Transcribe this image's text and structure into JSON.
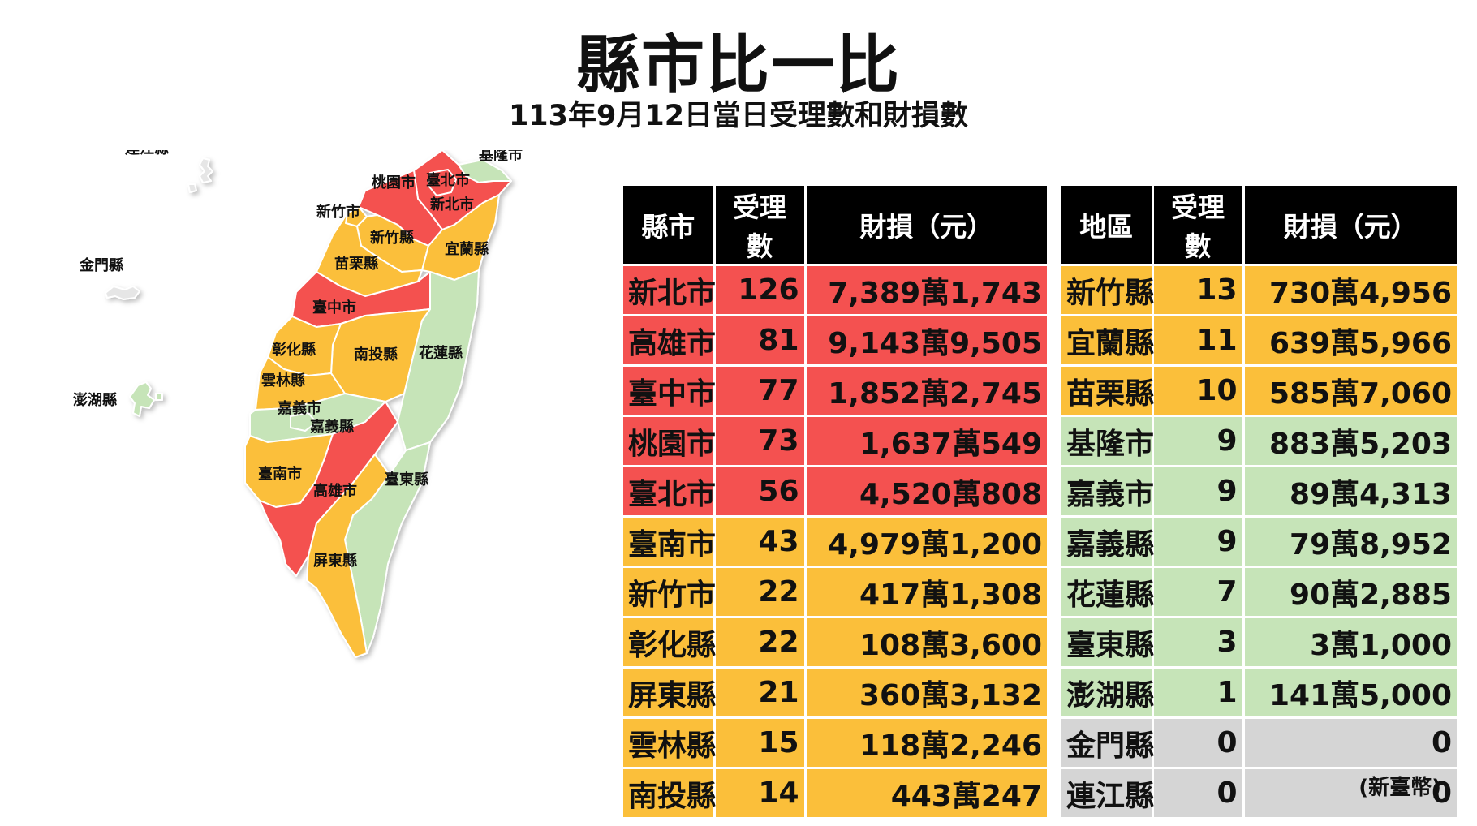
{
  "header": {
    "title": "縣市比一比",
    "subtitle": "113年9月12日當日受理數和財損數"
  },
  "colors": {
    "red": "#f45150",
    "orange": "#fbbf3a",
    "green": "#c6e4b8",
    "gray": "#d5d5d5",
    "header_bg": "#000000"
  },
  "map": {
    "labels": {
      "keelung": "基隆市",
      "taipei": "臺北市",
      "new_taipei": "新北市",
      "taoyuan": "桃園市",
      "hsinchu_city": "新竹市",
      "hsinchu_county": "新竹縣",
      "yilan": "宜蘭縣",
      "miaoli": "苗栗縣",
      "taichung": "臺中市",
      "changhua": "彰化縣",
      "nantou": "南投縣",
      "hualien": "花蓮縣",
      "yunlin": "雲林縣",
      "chiayi_city": "嘉義市",
      "chiayi_county": "嘉義縣",
      "tainan": "臺南市",
      "kaohsiung": "高雄市",
      "taitung": "臺東縣",
      "pingtung": "屏東縣",
      "lienchiang": "連江縣",
      "kinmen": "金門縣",
      "penghu": "澎湖縣"
    }
  },
  "table_left": {
    "headers": [
      "縣市",
      "受理數",
      "財損（元）"
    ],
    "rows": [
      {
        "name": "新北市",
        "count": "126",
        "loss": "7,389萬1,743",
        "level": "red"
      },
      {
        "name": "高雄市",
        "count": "81",
        "loss": "9,143萬9,505",
        "level": "red"
      },
      {
        "name": "臺中市",
        "count": "77",
        "loss": "1,852萬2,745",
        "level": "red"
      },
      {
        "name": "桃園市",
        "count": "73",
        "loss": "1,637萬549",
        "level": "red"
      },
      {
        "name": "臺北市",
        "count": "56",
        "loss": "4,520萬808",
        "level": "red"
      },
      {
        "name": "臺南市",
        "count": "43",
        "loss": "4,979萬1,200",
        "level": "orange"
      },
      {
        "name": "新竹市",
        "count": "22",
        "loss": "417萬1,308",
        "level": "orange"
      },
      {
        "name": "彰化縣",
        "count": "22",
        "loss": "108萬3,600",
        "level": "orange"
      },
      {
        "name": "屏東縣",
        "count": "21",
        "loss": "360萬3,132",
        "level": "orange"
      },
      {
        "name": "雲林縣",
        "count": "15",
        "loss": "118萬2,246",
        "level": "orange"
      },
      {
        "name": "南投縣",
        "count": "14",
        "loss": "443萬247",
        "level": "orange"
      }
    ]
  },
  "table_right": {
    "headers": [
      "地區",
      "受理數",
      "財損（元）"
    ],
    "rows": [
      {
        "name": "新竹縣",
        "count": "13",
        "loss": "730萬4,956",
        "level": "orange"
      },
      {
        "name": "宜蘭縣",
        "count": "11",
        "loss": "639萬5,966",
        "level": "orange"
      },
      {
        "name": "苗栗縣",
        "count": "10",
        "loss": "585萬7,060",
        "level": "orange"
      },
      {
        "name": "基隆市",
        "count": "9",
        "loss": "883萬5,203",
        "level": "green"
      },
      {
        "name": "嘉義市",
        "count": "9",
        "loss": "89萬4,313",
        "level": "green"
      },
      {
        "name": "嘉義縣",
        "count": "9",
        "loss": "79萬8,952",
        "level": "green"
      },
      {
        "name": "花蓮縣",
        "count": "7",
        "loss": "90萬2,885",
        "level": "green"
      },
      {
        "name": "臺東縣",
        "count": "3",
        "loss": "3萬1,000",
        "level": "green"
      },
      {
        "name": "澎湖縣",
        "count": "1",
        "loss": "141萬5,000",
        "level": "green"
      },
      {
        "name": "金門縣",
        "count": "0",
        "loss": "0",
        "level": "gray"
      },
      {
        "name": "連江縣",
        "count": "0",
        "loss": "0",
        "level": "gray"
      }
    ]
  },
  "footer": {
    "unit_note": "(新臺幣)"
  }
}
